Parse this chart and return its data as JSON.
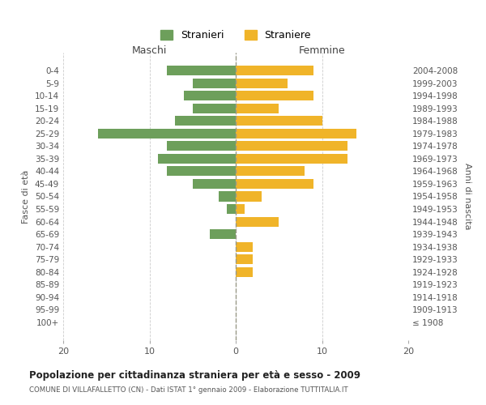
{
  "age_groups": [
    "0-4",
    "5-9",
    "10-14",
    "15-19",
    "20-24",
    "25-29",
    "30-34",
    "35-39",
    "40-44",
    "45-49",
    "50-54",
    "55-59",
    "60-64",
    "65-69",
    "70-74",
    "75-79",
    "80-84",
    "85-89",
    "90-94",
    "95-99",
    "100+"
  ],
  "birth_years": [
    "2004-2008",
    "1999-2003",
    "1994-1998",
    "1989-1993",
    "1984-1988",
    "1979-1983",
    "1974-1978",
    "1969-1973",
    "1964-1968",
    "1959-1963",
    "1954-1958",
    "1949-1953",
    "1944-1948",
    "1939-1943",
    "1934-1938",
    "1929-1933",
    "1924-1928",
    "1919-1923",
    "1914-1918",
    "1909-1913",
    "≤ 1908"
  ],
  "males": [
    8,
    5,
    6,
    5,
    7,
    16,
    8,
    9,
    8,
    5,
    2,
    1,
    0,
    3,
    0,
    0,
    0,
    0,
    0,
    0,
    0
  ],
  "females": [
    9,
    6,
    9,
    5,
    10,
    14,
    13,
    13,
    8,
    9,
    3,
    1,
    5,
    0,
    2,
    2,
    2,
    0,
    0,
    0,
    0
  ],
  "male_color": "#6d9f5b",
  "female_color": "#f0b429",
  "title": "Popolazione per cittadinanza straniera per età e sesso - 2009",
  "subtitle": "COMUNE DI VILLAFALLETTO (CN) - Dati ISTAT 1° gennaio 2009 - Elaborazione TUTTITALIA.IT",
  "xlabel_left": "Maschi",
  "xlabel_right": "Femmine",
  "ylabel_left": "Fasce di età",
  "ylabel_right": "Anni di nascita",
  "legend_male": "Stranieri",
  "legend_female": "Straniere",
  "xlim": 20,
  "background_color": "#ffffff",
  "grid_color": "#cccccc",
  "text_color": "#555555"
}
